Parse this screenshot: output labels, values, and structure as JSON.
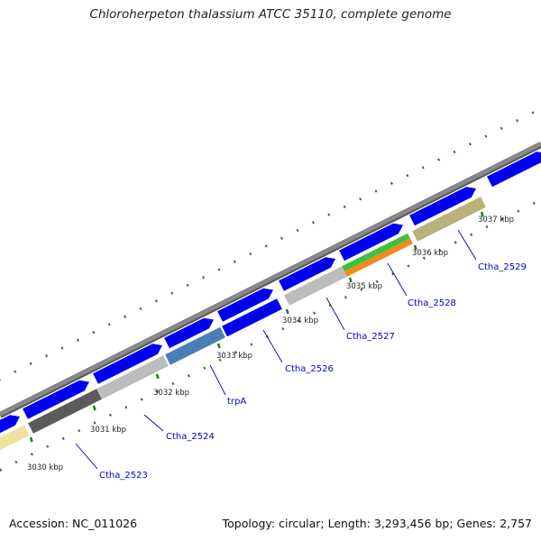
{
  "title": "Chloroherpeton thalassium ATCC 35110, complete genome",
  "footer": {
    "accession": "Accession: NC_011026",
    "summary": "Topology: circular; Length: 3,293,456 bp; Genes: 2,757"
  },
  "colors": {
    "backbone": "#8a8a8a",
    "forward_gene": "#0000ee",
    "tick": "#1e7a1e",
    "label": "#0000cc"
  },
  "kbp_labels": [
    "3030 kbp",
    "3031 kbp",
    "3032 kbp",
    "3033 kbp",
    "3034 kbp",
    "3035 kbp",
    "3036 kbp",
    "3037 kbp"
  ],
  "gene_labels": [
    "Ctha_2523",
    "Ctha_2524",
    "trpA",
    "Ctha_2526",
    "Ctha_2527",
    "Ctha_2528",
    "Ctha_2529"
  ],
  "reverse_genes": [
    {
      "name": "Ctha_2523",
      "color": "#5a5a5a",
      "icon": "gene-block"
    },
    {
      "name": "Ctha_2524",
      "color": "#bdbdbd",
      "icon": "gene-block"
    },
    {
      "name": "trpA",
      "color": "#4a7fb5",
      "icon": "gene-block"
    },
    {
      "name": "Ctha_2526",
      "color": "#0000ee",
      "icon": "gene-arrow"
    },
    {
      "name": "Ctha_2527",
      "color": "#bdbdbd",
      "icon": "gene-block"
    },
    {
      "name": "Ctha_2528",
      "color": "#f08a1c",
      "icon": "gene-block"
    },
    {
      "name": "Ctha_2529",
      "color": "#b9b27a",
      "icon": "gene-block"
    }
  ]
}
